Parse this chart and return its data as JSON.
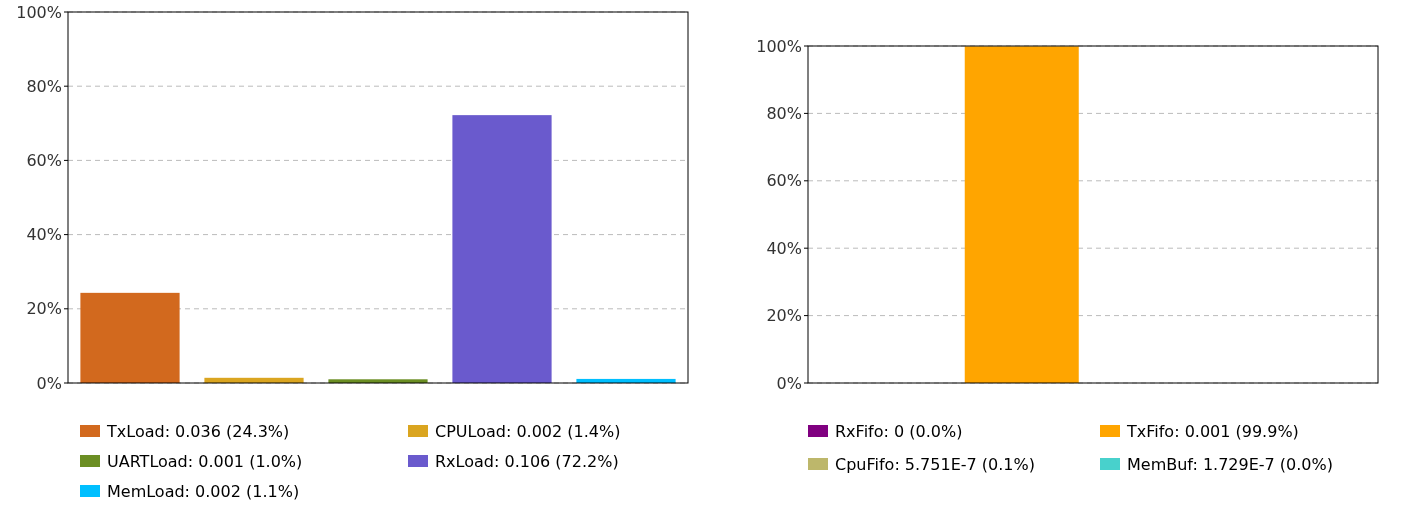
{
  "chart_data": [
    {
      "type": "bar",
      "categories": [
        null,
        null,
        null,
        null,
        null
      ],
      "ylim": [
        0,
        100
      ],
      "yticks": [
        {
          "value": 0,
          "label": "0%"
        },
        {
          "value": 20,
          "label": "20%"
        },
        {
          "value": 40,
          "label": "40%"
        },
        {
          "value": 60,
          "label": "60%"
        },
        {
          "value": 80,
          "label": "80%"
        },
        {
          "value": 100,
          "label": "100%"
        }
      ],
      "grid": "y",
      "legend": "bottom",
      "series": [
        {
          "name": "TxLoad: 0.036 (24.3%)",
          "color": "#d2691e",
          "values": [
            24.3,
            null,
            null,
            null,
            null
          ]
        },
        {
          "name": "CPULoad: 0.002 (1.4%)",
          "color": "#daa520",
          "values": [
            null,
            1.4,
            null,
            null,
            null
          ]
        },
        {
          "name": "UARTLoad: 0.001 (1.0%)",
          "color": "#6b8e23",
          "values": [
            null,
            null,
            1.0,
            null,
            null
          ]
        },
        {
          "name": "RxLoad: 0.106 (72.2%)",
          "color": "#6a5acd",
          "values": [
            null,
            null,
            null,
            72.2,
            null
          ]
        },
        {
          "name": "MemLoad: 0.002 (1.1%)",
          "color": "#00bfff",
          "values": [
            null,
            null,
            null,
            null,
            1.1
          ]
        }
      ]
    },
    {
      "type": "bar",
      "categories": [
        null,
        null,
        null,
        null
      ],
      "ylim": [
        0,
        100
      ],
      "yticks": [
        {
          "value": 0,
          "label": "0%"
        },
        {
          "value": 20,
          "label": "20%"
        },
        {
          "value": 40,
          "label": "40%"
        },
        {
          "value": 60,
          "label": "60%"
        },
        {
          "value": 80,
          "label": "80%"
        },
        {
          "value": 100,
          "label": "100%"
        }
      ],
      "grid": "y",
      "legend": "bottom",
      "series": [
        {
          "name": "RxFifo: 0 (0.0%)",
          "color": "#800080",
          "values": [
            0,
            null,
            null,
            null
          ]
        },
        {
          "name": "TxFifo: 0.001 (99.9%)",
          "color": "#ffa500",
          "values": [
            null,
            99.9,
            null,
            null
          ]
        },
        {
          "name": "CpuFifo: 5.751E-7 (0.1%)",
          "color": "#bdb76b",
          "values": [
            null,
            null,
            null,
            null
          ]
        },
        {
          "name": "MemBuf: 1.729E-7 (0.0%)",
          "color": "#48d1cc",
          "values": [
            null,
            null,
            null,
            0.0
          ]
        }
      ]
    }
  ]
}
